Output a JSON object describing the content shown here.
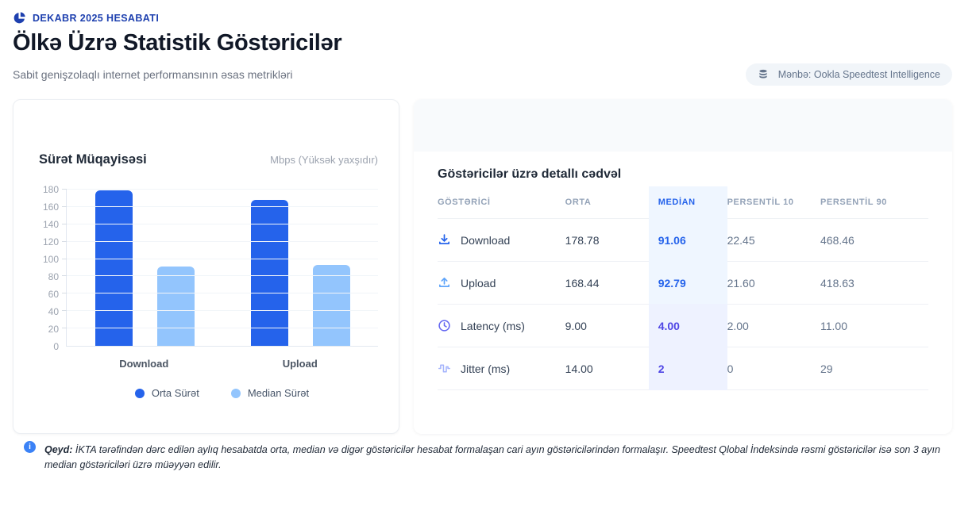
{
  "header": {
    "report_label": "DEKABR 2025 HESABATI",
    "title": "Ölkə Üzrə Statistik Göstəricilər",
    "subtitle": "Sabit genişzolaqlı internet performansının əsas metrikləri",
    "source_badge": "Mənbə: Ookla Speedtest Intelligence"
  },
  "chart_data": {
    "type": "bar",
    "title": "Sürət Müqayisəsi",
    "units_note": "Mbps (Yüksək yaxşıdır)",
    "categories": [
      "Download",
      "Upload"
    ],
    "series": [
      {
        "name": "Orta Sürət",
        "color": "#2563eb",
        "values": [
          178.78,
          168.44
        ]
      },
      {
        "name": "Median Sürət",
        "color": "#93c5fd",
        "values": [
          91.06,
          92.79
        ]
      }
    ],
    "ylim": [
      0,
      180
    ],
    "yticks": [
      0,
      20,
      40,
      60,
      80,
      100,
      120,
      140,
      160,
      180
    ],
    "grid": true,
    "legend_position": "bottom"
  },
  "table": {
    "title": "Göstəricilər üzrə detallı cədvəl",
    "columns": [
      "GÖSTƏRİCİ",
      "ORTA",
      "MEDİAN",
      "PERSENTİL 10",
      "PERSENTİL 90"
    ],
    "rows": [
      {
        "icon": "download-icon",
        "label": "Download",
        "orta": "178.78",
        "median": "91.06",
        "p10": "22.45",
        "p90": "468.46"
      },
      {
        "icon": "upload-icon",
        "label": "Upload",
        "orta": "168.44",
        "median": "92.79",
        "p10": "21.60",
        "p90": "418.63"
      },
      {
        "icon": "clock-icon",
        "label": "Latency (ms)",
        "orta": "9.00",
        "median": "4.00",
        "p10": "2.00",
        "p90": "11.00"
      },
      {
        "icon": "jitter-icon",
        "label": "Jitter (ms)",
        "orta": "14.00",
        "median": "2",
        "p10": "0",
        "p90": "29"
      }
    ]
  },
  "note": {
    "label": "Qeyd:",
    "text": " İKTA tərəfindən dərc edilən aylıq hesabatda orta, median və digər göstəricilər hesabat formalaşan cari ayın göstəricilərindən formalaşır. Speedtest Qlobal İndeksində rəsmi göstəricilər isə son 3 ayın median göstəriciləri üzrə müəyyən edilir."
  },
  "colors": {
    "accent_blue": "#2563eb",
    "accent_light_blue": "#93c5fd",
    "accent_indigo": "#4f46e5",
    "median_bg_blue": "#eff6ff",
    "median_bg_indigo": "#eef2ff",
    "brand_blue": "#1e40af"
  }
}
